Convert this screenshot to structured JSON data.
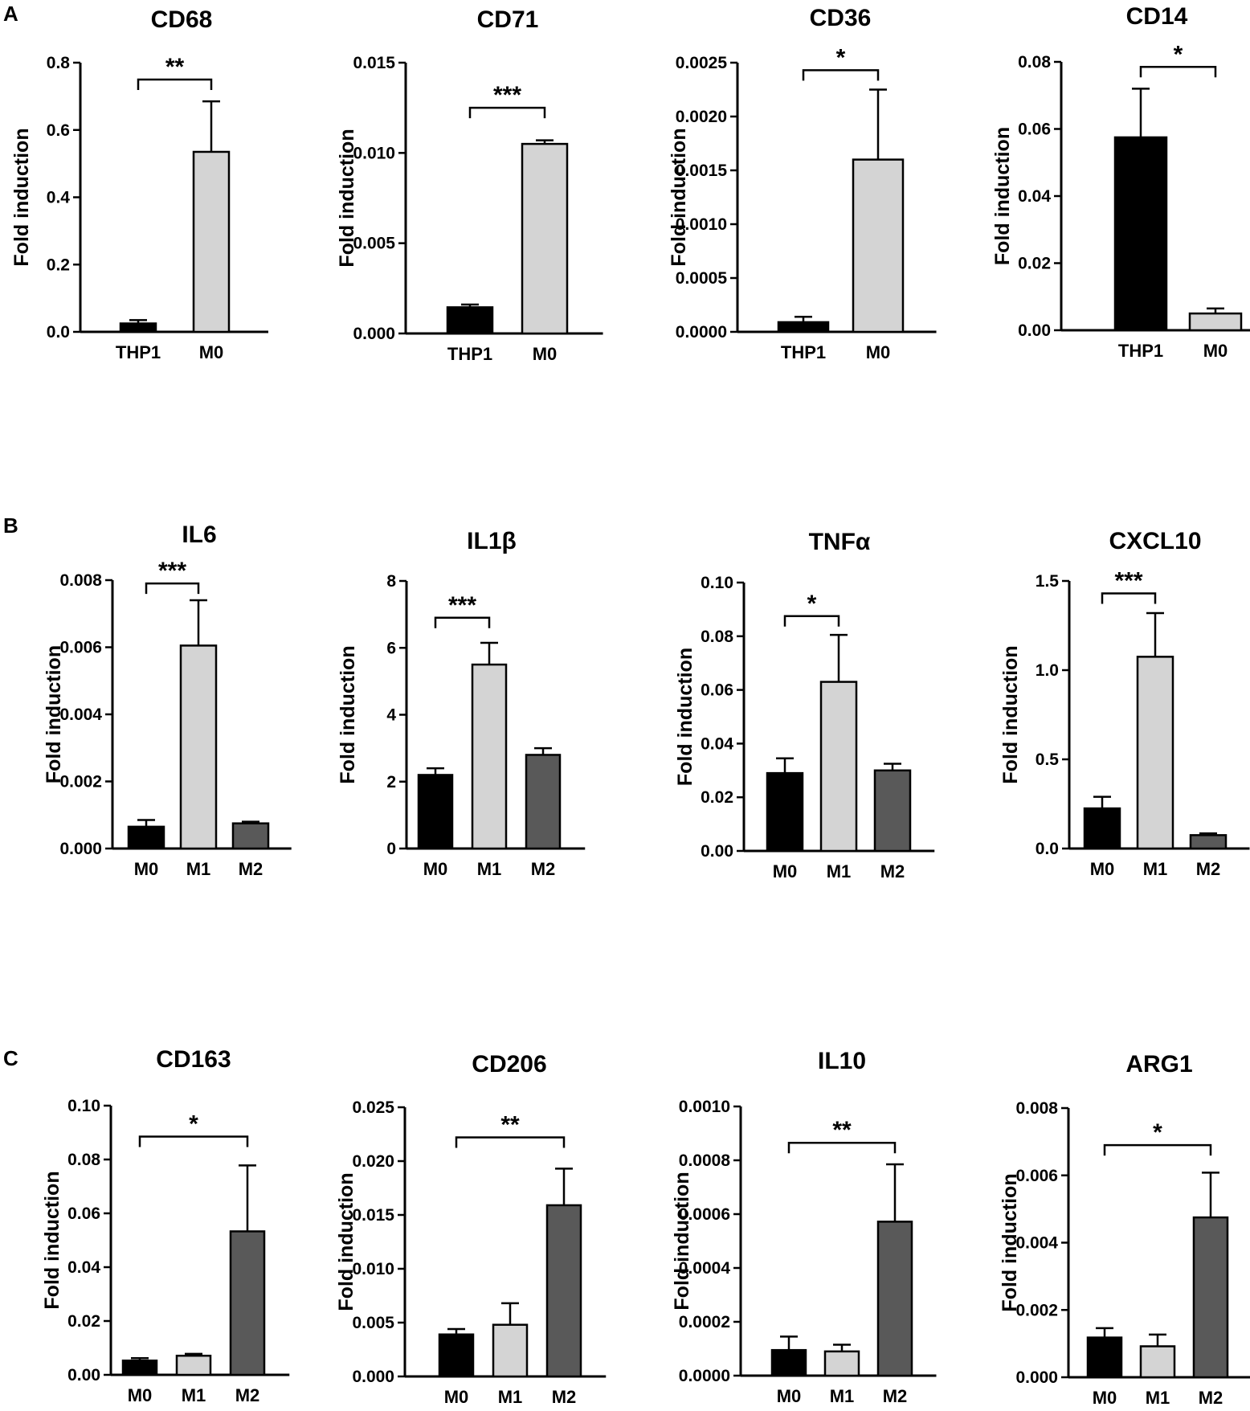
{
  "figure": {
    "panels": [
      {
        "label": "A"
      },
      {
        "label": "B"
      },
      {
        "label": "C"
      }
    ]
  },
  "style": {
    "colors": {
      "M0_dark": "#000000",
      "light": "#d4d4d4",
      "dark_gray": "#595959",
      "stroke": "#000000"
    }
  },
  "chart_data": [
    {
      "type": "bar",
      "panel": "A",
      "title": "CD68",
      "ylabel": "Fold induction",
      "ylim": [
        0,
        0.8
      ],
      "yticks": [
        "0.0",
        "0.2",
        "0.4",
        "0.6",
        "0.8"
      ],
      "categories": [
        "THP1",
        "M0"
      ],
      "values": [
        0.025,
        0.535
      ],
      "errors": [
        0.01,
        0.15
      ],
      "colors": [
        "#000000",
        "#d4d4d4"
      ],
      "significance": {
        "between": [
          "THP1",
          "M0"
        ],
        "label": "**",
        "y": 0.75
      }
    },
    {
      "type": "bar",
      "panel": "A",
      "title": "CD71",
      "ylabel": "Fold induction",
      "ylim": [
        0,
        0.015
      ],
      "yticks": [
        "0.000",
        "0.005",
        "0.010",
        "0.015"
      ],
      "categories": [
        "THP1",
        "M0"
      ],
      "values": [
        0.00145,
        0.0105
      ],
      "errors": [
        0.00015,
        0.0002
      ],
      "colors": [
        "#000000",
        "#d4d4d4"
      ],
      "significance": {
        "between": [
          "THP1",
          "M0"
        ],
        "label": "***",
        "y": 0.0125
      }
    },
    {
      "type": "bar",
      "panel": "A",
      "title": "CD36",
      "ylabel": "Fold induction",
      "ylim": [
        0,
        0.0025
      ],
      "yticks": [
        "0.0000",
        "0.0005",
        "0.0010",
        "0.0015",
        "0.0020",
        "0.0025"
      ],
      "categories": [
        "THP1",
        "M0"
      ],
      "values": [
        9e-05,
        0.0016
      ],
      "errors": [
        5e-05,
        0.00065
      ],
      "colors": [
        "#000000",
        "#d4d4d4"
      ],
      "significance": {
        "between": [
          "THP1",
          "M0"
        ],
        "label": "*",
        "y": 0.00243
      }
    },
    {
      "type": "bar",
      "panel": "A",
      "title": "CD14",
      "ylabel": "Fold induction",
      "ylim": [
        0,
        0.08
      ],
      "yticks": [
        "0.00",
        "0.02",
        "0.04",
        "0.06",
        "0.08"
      ],
      "categories": [
        "THP1",
        "M0"
      ],
      "values": [
        0.0575,
        0.005
      ],
      "errors": [
        0.0145,
        0.0015
      ],
      "colors": [
        "#000000",
        "#d4d4d4"
      ],
      "significance": {
        "between": [
          "THP1",
          "M0"
        ],
        "label": "*",
        "y": 0.0785
      }
    },
    {
      "type": "bar",
      "panel": "B",
      "title": "IL6",
      "ylabel": "Fold induction",
      "ylim": [
        0,
        0.008
      ],
      "yticks": [
        "0.000",
        "0.002",
        "0.004",
        "0.006",
        "0.008"
      ],
      "categories": [
        "M0",
        "M1",
        "M2"
      ],
      "values": [
        0.00065,
        0.00605,
        0.00075
      ],
      "errors": [
        0.0002,
        0.00135,
        5e-05
      ],
      "colors": [
        "#000000",
        "#d4d4d4",
        "#595959"
      ],
      "significance": {
        "between": [
          "M0",
          "M1"
        ],
        "label": "***",
        "y": 0.0079
      }
    },
    {
      "type": "bar",
      "panel": "B",
      "title": "IL1β",
      "ylabel": "Fold induction",
      "ylim": [
        0,
        8
      ],
      "yticks": [
        "0",
        "2",
        "4",
        "6",
        "8"
      ],
      "categories": [
        "M0",
        "M1",
        "M2"
      ],
      "values": [
        2.2,
        5.5,
        2.8
      ],
      "errors": [
        0.2,
        0.65,
        0.2
      ],
      "colors": [
        "#000000",
        "#d4d4d4",
        "#595959"
      ],
      "significance": {
        "between": [
          "M0",
          "M1"
        ],
        "label": "***",
        "y": 6.9
      }
    },
    {
      "type": "bar",
      "panel": "B",
      "title": "TNFα",
      "ylabel": "Fold induction",
      "ylim": [
        0,
        0.1
      ],
      "yticks": [
        "0.00",
        "0.02",
        "0.04",
        "0.06",
        "0.08",
        "0.10"
      ],
      "categories": [
        "M0",
        "M1",
        "M2"
      ],
      "values": [
        0.029,
        0.063,
        0.03
      ],
      "errors": [
        0.0055,
        0.0175,
        0.0025
      ],
      "colors": [
        "#000000",
        "#d4d4d4",
        "#595959"
      ],
      "significance": {
        "between": [
          "M0",
          "M1"
        ],
        "label": "*",
        "y": 0.0875
      }
    },
    {
      "type": "bar",
      "panel": "B",
      "title": "CXCL10",
      "ylabel": "Fold induction",
      "ylim": [
        0,
        1.5
      ],
      "yticks": [
        "0.0",
        "0.5",
        "1.0",
        "1.5"
      ],
      "categories": [
        "M0",
        "M1",
        "M2"
      ],
      "values": [
        0.225,
        1.075,
        0.075
      ],
      "errors": [
        0.065,
        0.245,
        0.01
      ],
      "colors": [
        "#000000",
        "#d4d4d4",
        "#595959"
      ],
      "significance": {
        "between": [
          "M0",
          "M1"
        ],
        "label": "***",
        "y": 1.43
      }
    },
    {
      "type": "bar",
      "panel": "C",
      "title": "CD163",
      "ylabel": "Fold induction",
      "ylim": [
        0,
        0.1
      ],
      "yticks": [
        "0.00",
        "0.02",
        "0.04",
        "0.06",
        "0.08",
        "0.10"
      ],
      "categories": [
        "M0",
        "M1",
        "M2"
      ],
      "values": [
        0.0053,
        0.0071,
        0.0533
      ],
      "errors": [
        0.0009,
        0.0007,
        0.0245
      ],
      "colors": [
        "#000000",
        "#d4d4d4",
        "#595959"
      ],
      "significance": {
        "between": [
          "M0",
          "M2"
        ],
        "label": "*",
        "y": 0.0885
      }
    },
    {
      "type": "bar",
      "panel": "C",
      "title": "CD206",
      "ylabel": "Fold induction",
      "ylim": [
        0,
        0.025
      ],
      "yticks": [
        "0.000",
        "0.005",
        "0.010",
        "0.015",
        "0.020",
        "0.025"
      ],
      "categories": [
        "M0",
        "M1",
        "M2"
      ],
      "values": [
        0.0039,
        0.0048,
        0.0159
      ],
      "errors": [
        0.0005,
        0.002,
        0.0034
      ],
      "colors": [
        "#000000",
        "#d4d4d4",
        "#595959"
      ],
      "significance": {
        "between": [
          "M0",
          "M2"
        ],
        "label": "**",
        "y": 0.0222
      }
    },
    {
      "type": "bar",
      "panel": "C",
      "title": "IL10",
      "ylabel": "Fold induction",
      "ylim": [
        0,
        0.001
      ],
      "yticks": [
        "0.0000",
        "0.0002",
        "0.0004",
        "0.0006",
        "0.0008",
        "0.0010"
      ],
      "categories": [
        "M0",
        "M1",
        "M2"
      ],
      "values": [
        9.5e-05,
        9e-05,
        0.000572
      ],
      "errors": [
        5e-05,
        2.5e-05,
        0.000213
      ],
      "colors": [
        "#000000",
        "#d4d4d4",
        "#595959"
      ],
      "significance": {
        "between": [
          "M0",
          "M2"
        ],
        "label": "**",
        "y": 0.000865
      }
    },
    {
      "type": "bar",
      "panel": "C",
      "title": "ARG1",
      "ylabel": "Fold induction",
      "ylim": [
        0,
        0.008
      ],
      "yticks": [
        "0.000",
        "0.002",
        "0.004",
        "0.006",
        "0.008"
      ],
      "categories": [
        "M0",
        "M1",
        "M2"
      ],
      "values": [
        0.00118,
        0.00092,
        0.00475
      ],
      "errors": [
        0.00028,
        0.00035,
        0.00133
      ],
      "colors": [
        "#000000",
        "#d4d4d4",
        "#595959"
      ],
      "significance": {
        "between": [
          "M0",
          "M2"
        ],
        "label": "*",
        "y": 0.0069
      }
    }
  ]
}
